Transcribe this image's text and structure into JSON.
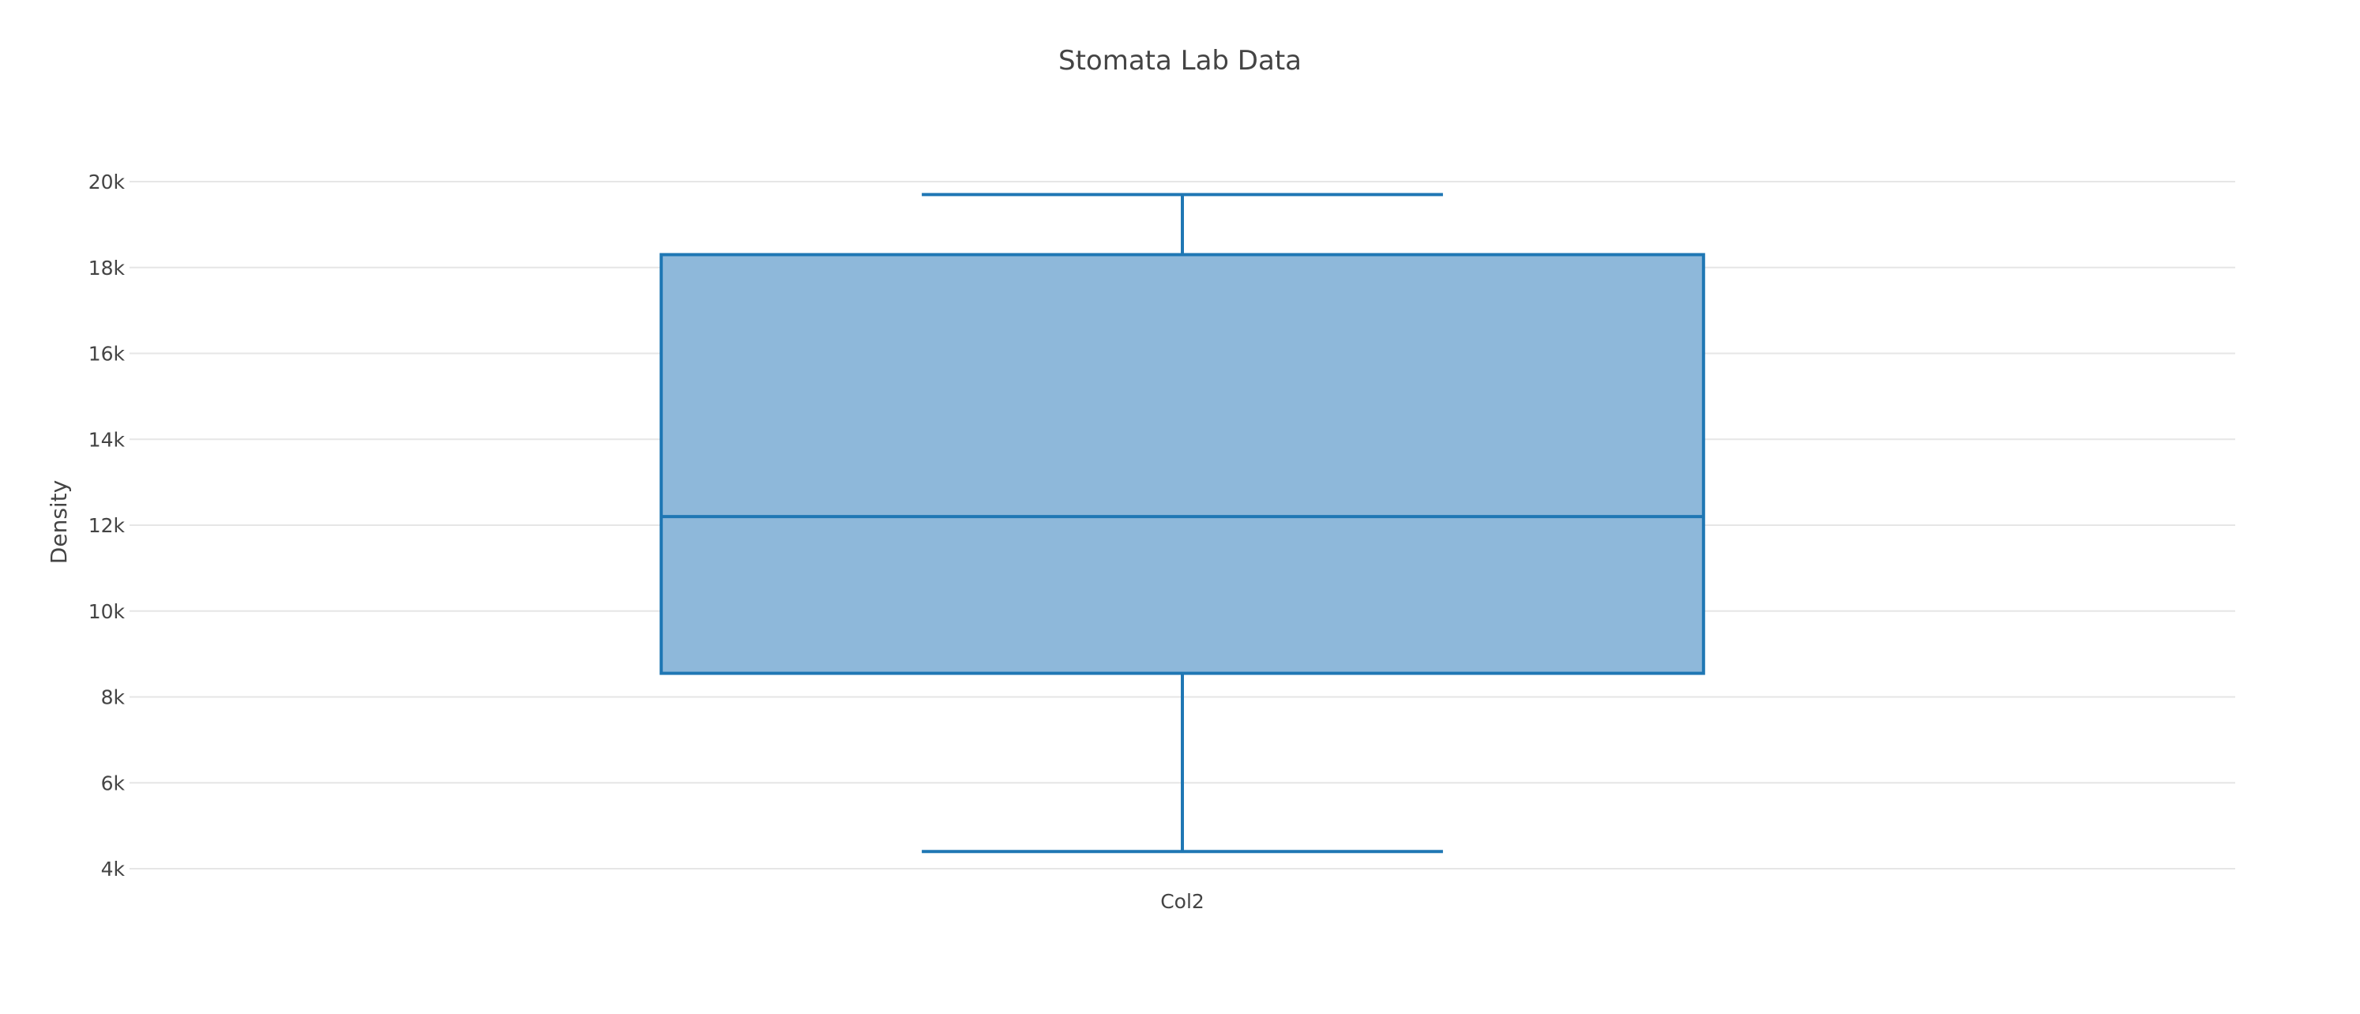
{
  "chart_data": {
    "type": "box",
    "title": "Stomata Lab Data",
    "xlabel": "",
    "ylabel": "Density",
    "categories": [
      "Col2"
    ],
    "ylim": [
      4000,
      20000
    ],
    "yticks": [
      {
        "value": 4000,
        "label": "4k"
      },
      {
        "value": 6000,
        "label": "6k"
      },
      {
        "value": 8000,
        "label": "8k"
      },
      {
        "value": 10000,
        "label": "10k"
      },
      {
        "value": 12000,
        "label": "12k"
      },
      {
        "value": 14000,
        "label": "14k"
      },
      {
        "value": 16000,
        "label": "16k"
      },
      {
        "value": 18000,
        "label": "18k"
      },
      {
        "value": 20000,
        "label": "20k"
      }
    ],
    "grid": true,
    "boxes": [
      {
        "category": "Col2",
        "min": 4400,
        "q1": 8550,
        "median": 12200,
        "q3": 18300,
        "max": 19700
      }
    ],
    "colors": {
      "box_line": "#1f77b4",
      "box_fill": "#8eb8da",
      "grid": "#e6e6e6",
      "text": "#444444"
    }
  }
}
